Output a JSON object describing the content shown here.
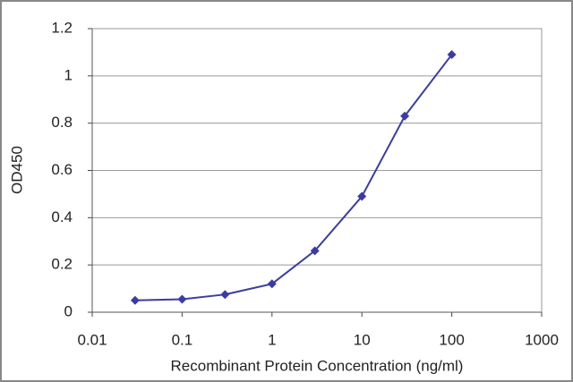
{
  "chart_data": {
    "type": "line",
    "x_label": "Recombinant Protein Concentration (ng/ml)",
    "y_label": "OD450",
    "x": [
      0.03,
      0.1,
      0.3,
      1,
      3,
      10,
      30,
      100
    ],
    "values": [
      0.05,
      0.055,
      0.075,
      0.12,
      0.26,
      0.49,
      0.83,
      1.09
    ],
    "color": "#3b3ba6",
    "xscale": "log",
    "xlim": [
      0.01,
      1000
    ],
    "xticks": [
      0.01,
      0.1,
      1,
      10,
      100,
      1000
    ],
    "ylim": [
      0,
      1.2
    ],
    "yticks": [
      0,
      0.2,
      0.4,
      0.6,
      0.8,
      1,
      1.2
    ],
    "grid": true
  }
}
